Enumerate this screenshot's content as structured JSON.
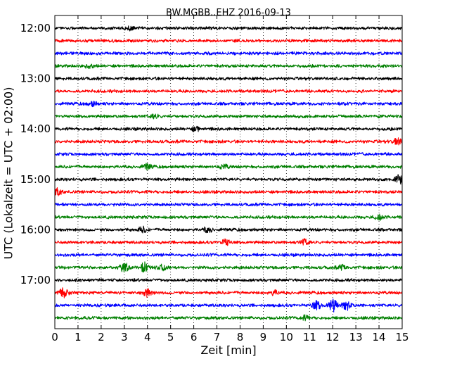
{
  "chart_data": {
    "type": "line",
    "title": "BW.MGBB..EHZ 2016-09-13",
    "xlabel": "Zeit  [min]",
    "ylabel": "UTC (Lokalzeit = UTC + 02:00)",
    "xlim": [
      0,
      15
    ],
    "x_ticks": [
      "0",
      "1",
      "2",
      "3",
      "4",
      "5",
      "6",
      "7",
      "8",
      "9",
      "10",
      "11",
      "12",
      "13",
      "14",
      "15"
    ],
    "y_tick_labels": [
      "12:00",
      "13:00",
      "14:00",
      "15:00",
      "16:00",
      "17:00"
    ],
    "grid": "vertical dotted",
    "colors": [
      "#000000",
      "#ff0000",
      "#0000ff",
      "#008000"
    ],
    "traces": [
      {
        "start": "12:00",
        "color": "#000000",
        "events": [
          {
            "t": 3.2,
            "amp": 1.4
          }
        ]
      },
      {
        "start": "12:15",
        "color": "#ff0000",
        "events": []
      },
      {
        "start": "12:30",
        "color": "#0000ff",
        "events": []
      },
      {
        "start": "12:45",
        "color": "#008000",
        "events": [
          {
            "t": 1.5,
            "amp": 1.3
          }
        ]
      },
      {
        "start": "13:00",
        "color": "#000000",
        "events": []
      },
      {
        "start": "13:15",
        "color": "#ff0000",
        "events": []
      },
      {
        "start": "13:30",
        "color": "#0000ff",
        "events": [
          {
            "t": 1.6,
            "amp": 1.5
          }
        ]
      },
      {
        "start": "13:45",
        "color": "#008000",
        "events": [
          {
            "t": 4.3,
            "amp": 1.4
          }
        ]
      },
      {
        "start": "14:00",
        "color": "#000000",
        "events": [
          {
            "t": 6.1,
            "amp": 1.6
          }
        ]
      },
      {
        "start": "14:15",
        "color": "#ff0000",
        "events": [
          {
            "t": 14.8,
            "amp": 2.2
          }
        ]
      },
      {
        "start": "14:30",
        "color": "#0000ff",
        "events": []
      },
      {
        "start": "14:45",
        "color": "#008000",
        "events": [
          {
            "t": 4.0,
            "amp": 1.8
          },
          {
            "t": 7.3,
            "amp": 1.3
          }
        ]
      },
      {
        "start": "15:00",
        "color": "#000000",
        "events": [
          {
            "t": 14.9,
            "amp": 3.4
          }
        ]
      },
      {
        "start": "15:15",
        "color": "#ff0000",
        "events": [
          {
            "t": 0.1,
            "amp": 2.2
          }
        ]
      },
      {
        "start": "15:30",
        "color": "#0000ff",
        "events": []
      },
      {
        "start": "15:45",
        "color": "#008000",
        "events": [
          {
            "t": 14.0,
            "amp": 1.8
          }
        ]
      },
      {
        "start": "16:00",
        "color": "#000000",
        "events": [
          {
            "t": 3.8,
            "amp": 1.8
          },
          {
            "t": 6.6,
            "amp": 1.6
          }
        ]
      },
      {
        "start": "16:15",
        "color": "#ff0000",
        "events": [
          {
            "t": 7.4,
            "amp": 2.0
          },
          {
            "t": 10.8,
            "amp": 2.0
          }
        ]
      },
      {
        "start": "16:30",
        "color": "#0000ff",
        "events": []
      },
      {
        "start": "16:45",
        "color": "#008000",
        "events": [
          {
            "t": 3.0,
            "amp": 3.0
          },
          {
            "t": 3.9,
            "amp": 3.4
          },
          {
            "t": 4.6,
            "amp": 2.4
          },
          {
            "t": 12.4,
            "amp": 1.4
          }
        ]
      },
      {
        "start": "17:00",
        "color": "#000000",
        "events": []
      },
      {
        "start": "17:15",
        "color": "#ff0000",
        "events": [
          {
            "t": 0.4,
            "amp": 3.0
          },
          {
            "t": 4.0,
            "amp": 2.6
          },
          {
            "t": 9.5,
            "amp": 1.5
          }
        ]
      },
      {
        "start": "17:30",
        "color": "#0000ff",
        "events": [
          {
            "t": 11.3,
            "amp": 3.0
          },
          {
            "t": 12.0,
            "amp": 4.2
          },
          {
            "t": 12.6,
            "amp": 3.2
          }
        ]
      },
      {
        "start": "17:45",
        "color": "#008000",
        "events": [
          {
            "t": 10.8,
            "amp": 1.4
          }
        ]
      }
    ]
  }
}
